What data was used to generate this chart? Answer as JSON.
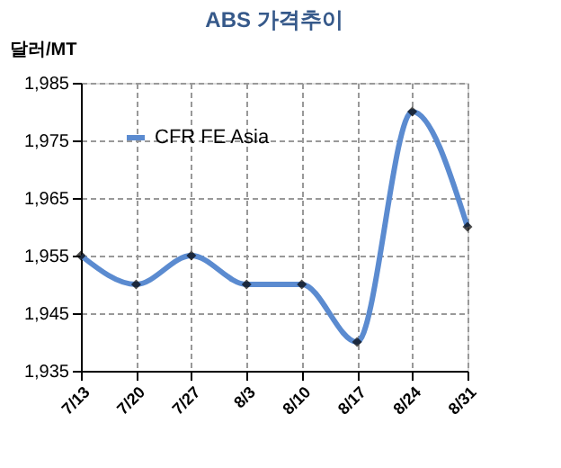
{
  "chart_data": {
    "type": "line",
    "title": "ABS 가격추이",
    "ylabel": "달러/MT",
    "categories": [
      "7/13",
      "7/20",
      "7/27",
      "8/3",
      "8/10",
      "8/17",
      "8/24",
      "8/31"
    ],
    "series": [
      {
        "name": "CFR FE Asia",
        "color": "#5b8bd0",
        "values": [
          1955,
          1950,
          1955,
          1950,
          1950,
          1940,
          1980,
          1960
        ]
      }
    ],
    "ylim": [
      1935,
      1985
    ],
    "yticks": [
      {
        "value": 1935,
        "label": "1,935"
      },
      {
        "value": 1945,
        "label": "1,945"
      },
      {
        "value": 1955,
        "label": "1,955"
      },
      {
        "value": 1965,
        "label": "1,965"
      },
      {
        "value": 1975,
        "label": "1,975"
      },
      {
        "value": 1985,
        "label": "1,985"
      }
    ],
    "grid": true,
    "legend": "top left",
    "marker": "diamond",
    "line_style": "solid"
  }
}
